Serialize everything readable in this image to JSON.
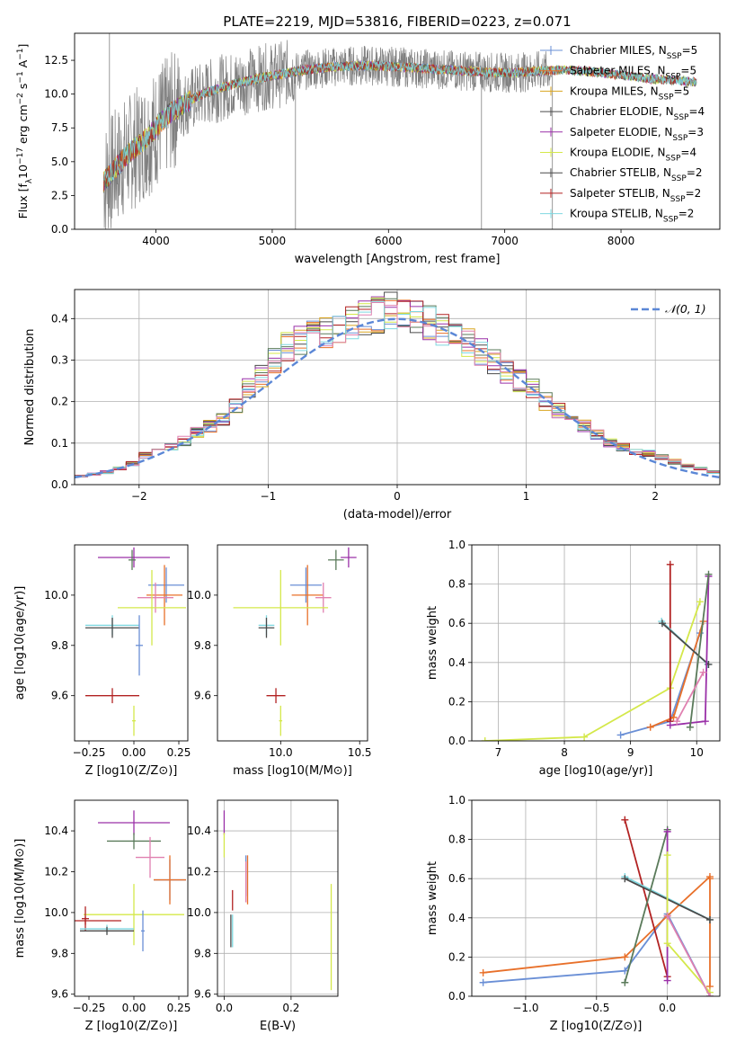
{
  "figure": {
    "title": "PLATE=2219, MJD=53816, FIBERID=0223, z=0.071"
  },
  "colors": {
    "chabrier_miles": "#6a8fd6",
    "salpeter_miles": "#e8702a",
    "kroupa_miles": "#d9a520",
    "chabrier_elodie": "#4a4a4a",
    "salpeter_elodie": "#9a30a8",
    "kroupa_elodie": "#d4e84a",
    "chabrier_stelib": "#5a7a5a",
    "salpeter_stelib": "#b22222",
    "kroupa_stelib": "#7fd8e0",
    "pink": "#e080b0",
    "normal_curve": "#5b87d6"
  },
  "chart_data": [
    {
      "type": "line",
      "panel": "spectrum",
      "title": "PLATE=2219, MJD=53816, FIBERID=0223, z=0.071",
      "xlabel": "wavelength [Angstrom, rest frame]",
      "ylabel": "Flux [f_λ 10^-17 erg cm^-2 s^-1 A^-1]",
      "xlim": [
        3300,
        8850
      ],
      "ylim": [
        0,
        14.5
      ],
      "xticks": [
        "4000",
        "5000",
        "6000",
        "7000",
        "8000"
      ],
      "yticks": [
        "0.0",
        "2.5",
        "5.0",
        "7.5",
        "10.0",
        "12.5"
      ],
      "grid": false,
      "legend_position": "top-right",
      "data_envelope": {
        "x": [
          3550,
          3650,
          3750,
          3850,
          3950,
          4050,
          4150,
          4250,
          4350,
          4500,
          4700,
          4900,
          5100,
          5300,
          5500,
          5700,
          5900,
          6100,
          6300,
          6500,
          6700,
          6900,
          7100,
          7300,
          7500,
          7700,
          7900,
          8100,
          8300,
          8500,
          8650
        ],
        "y": [
          3.5,
          4.5,
          5.5,
          6.2,
          7.0,
          8.0,
          8.8,
          9.3,
          9.8,
          10.3,
          10.8,
          11.2,
          11.5,
          11.8,
          12.0,
          12.1,
          12.1,
          12.0,
          11.9,
          11.8,
          11.7,
          11.6,
          11.6,
          11.7,
          11.8,
          11.7,
          11.5,
          11.3,
          11.1,
          11.0,
          10.9
        ]
      },
      "legend": [
        {
          "label": "Chabrier MILES, N",
          "sub": "SSP",
          "suffix": "=5",
          "color_key": "chabrier_miles"
        },
        {
          "label": "Salpeter MILES, N",
          "sub": "SSP",
          "suffix": "=5",
          "color_key": "salpeter_miles"
        },
        {
          "label": "Kroupa MILES, N",
          "sub": "SSP",
          "suffix": "=5",
          "color_key": "kroupa_miles"
        },
        {
          "label": "Chabrier ELODIE, N",
          "sub": "SSP",
          "suffix": "=4",
          "color_key": "chabrier_elodie"
        },
        {
          "label": "Salpeter ELODIE, N",
          "sub": "SSP",
          "suffix": "=3",
          "color_key": "salpeter_elodie"
        },
        {
          "label": "Kroupa ELODIE, N",
          "sub": "SSP",
          "suffix": "=4",
          "color_key": "kroupa_elodie"
        },
        {
          "label": "Chabrier STELIB, N",
          "sub": "SSP",
          "suffix": "=2",
          "color_key": "chabrier_elodie"
        },
        {
          "label": "Salpeter STELIB, N",
          "sub": "SSP",
          "suffix": "=2",
          "color_key": "salpeter_stelib"
        },
        {
          "label": "Kroupa STELIB, N",
          "sub": "SSP",
          "suffix": "=2",
          "color_key": "kroupa_stelib"
        }
      ]
    },
    {
      "type": "line",
      "panel": "residuals",
      "xlabel": "(data-model)/error",
      "ylabel": "Normed distribution",
      "xlim": [
        -2.5,
        2.5
      ],
      "ylim": [
        0,
        0.47
      ],
      "xticks": [
        "−2",
        "−1",
        "0",
        "1",
        "2"
      ],
      "yticks": [
        "0.0",
        "0.1",
        "0.2",
        "0.3",
        "0.4"
      ],
      "grid": true,
      "legend_position": "top-right",
      "legend": [
        {
          "label": "𝒩(0, 1)",
          "color_key": "normal_curve"
        }
      ],
      "histogram_bin_width": 0.1,
      "histogram_centers": [
        -2.45,
        -2.35,
        -2.25,
        -2.15,
        -2.05,
        -1.95,
        -1.85,
        -1.75,
        -1.65,
        -1.55,
        -1.45,
        -1.35,
        -1.25,
        -1.15,
        -1.05,
        -0.95,
        -0.85,
        -0.75,
        -0.65,
        -0.55,
        -0.45,
        -0.35,
        -0.25,
        -0.15,
        -0.05,
        0.05,
        0.15,
        0.25,
        0.35,
        0.45,
        0.55,
        0.65,
        0.75,
        0.85,
        0.95,
        1.05,
        1.15,
        1.25,
        1.35,
        1.45,
        1.55,
        1.65,
        1.75,
        1.85,
        1.95,
        2.05,
        2.15,
        2.25,
        2.35,
        2.45
      ],
      "histogram_mean": [
        0.02,
        0.025,
        0.03,
        0.04,
        0.05,
        0.07,
        0.08,
        0.09,
        0.105,
        0.125,
        0.14,
        0.16,
        0.19,
        0.23,
        0.26,
        0.3,
        0.33,
        0.35,
        0.36,
        0.37,
        0.38,
        0.39,
        0.4,
        0.41,
        0.42,
        0.41,
        0.4,
        0.39,
        0.37,
        0.36,
        0.34,
        0.32,
        0.3,
        0.27,
        0.25,
        0.23,
        0.2,
        0.18,
        0.16,
        0.14,
        0.12,
        0.1,
        0.09,
        0.08,
        0.075,
        0.065,
        0.055,
        0.045,
        0.04,
        0.03
      ],
      "normal_curve": {
        "mu": 0,
        "sigma": 1
      }
    },
    {
      "type": "scatter",
      "panel": "age_vs_Z",
      "xlabel": "Z [log10(Z/Z⊙)]",
      "ylabel": "age [log10(age/yr)]",
      "xlim": [
        -0.33,
        0.3
      ],
      "ylim": [
        9.42,
        10.2
      ],
      "xticks": [
        "−0.25",
        "0.00",
        "0.25"
      ],
      "yticks": [
        "9.6",
        "9.8",
        "10.0"
      ],
      "grid": false,
      "points": [
        {
          "x": 0.0,
          "y": 10.15,
          "xerr": 0.2,
          "yerr": 0.04,
          "color_key": "salpeter_elodie"
        },
        {
          "x": -0.01,
          "y": 10.14,
          "xerr": 0.02,
          "yerr": 0.04,
          "color_key": "chabrier_stelib"
        },
        {
          "x": 0.18,
          "y": 10.04,
          "xerr": 0.1,
          "yerr": 0.07,
          "color_key": "chabrier_miles"
        },
        {
          "x": 0.17,
          "y": 10.0,
          "xerr": 0.1,
          "yerr": 0.12,
          "color_key": "salpeter_miles"
        },
        {
          "x": 0.12,
          "y": 9.99,
          "xerr": 0.1,
          "yerr": 0.06,
          "color_key": "pink"
        },
        {
          "x": 0.1,
          "y": 9.95,
          "xerr": 0.19,
          "yerr": 0.15,
          "color_key": "kroupa_elodie"
        },
        {
          "x": -0.12,
          "y": 9.88,
          "xerr": 0.15,
          "yerr": 0.04,
          "color_key": "kroupa_stelib"
        },
        {
          "x": -0.12,
          "y": 9.87,
          "xerr": 0.15,
          "yerr": 0.04,
          "color_key": "chabrier_elodie"
        },
        {
          "x": 0.03,
          "y": 9.8,
          "xerr": 0.02,
          "yerr": 0.12,
          "color_key": "chabrier_miles"
        },
        {
          "x": -0.12,
          "y": 9.6,
          "xerr": 0.15,
          "yerr": 0.03,
          "color_key": "salpeter_stelib"
        },
        {
          "x": 0.0,
          "y": 9.5,
          "xerr": 0.01,
          "yerr": 0.06,
          "color_key": "kroupa_elodie"
        }
      ]
    },
    {
      "type": "scatter",
      "panel": "age_vs_mass",
      "xlabel": "mass [log10(M/M⊙)]",
      "xlim": [
        9.6,
        10.55
      ],
      "ylim": [
        9.42,
        10.2
      ],
      "xticks": [
        "9.5",
        "10.0",
        "10.5"
      ],
      "yticks": [
        "9.6",
        "9.8",
        "10.0"
      ],
      "grid": false,
      "points": [
        {
          "x": 10.43,
          "y": 10.15,
          "xerr": 0.05,
          "yerr": 0.04,
          "color_key": "salpeter_elodie"
        },
        {
          "x": 10.35,
          "y": 10.14,
          "xerr": 0.05,
          "yerr": 0.04,
          "color_key": "chabrier_stelib"
        },
        {
          "x": 10.16,
          "y": 10.04,
          "xerr": 0.1,
          "yerr": 0.07,
          "color_key": "chabrier_miles"
        },
        {
          "x": 10.17,
          "y": 10.0,
          "xerr": 0.1,
          "yerr": 0.12,
          "color_key": "salpeter_miles"
        },
        {
          "x": 10.27,
          "y": 9.99,
          "xerr": 0.05,
          "yerr": 0.06,
          "color_key": "pink"
        },
        {
          "x": 10.0,
          "y": 9.95,
          "xerr": 0.3,
          "yerr": 0.15,
          "color_key": "kroupa_elodie"
        },
        {
          "x": 9.91,
          "y": 9.88,
          "xerr": 0.05,
          "yerr": 0.04,
          "color_key": "kroupa_stelib"
        },
        {
          "x": 9.91,
          "y": 9.87,
          "xerr": 0.05,
          "yerr": 0.04,
          "color_key": "chabrier_elodie"
        },
        {
          "x": 9.97,
          "y": 9.6,
          "xerr": 0.06,
          "yerr": 0.03,
          "color_key": "salpeter_stelib"
        },
        {
          "x": 10.0,
          "y": 9.5,
          "xerr": 0.01,
          "yerr": 0.06,
          "color_key": "kroupa_elodie"
        }
      ]
    },
    {
      "type": "line",
      "panel": "weight_vs_age",
      "xlabel": "age [log10(age/yr)]",
      "ylabel": "mass weight",
      "xlim": [
        6.6,
        10.35
      ],
      "ylim": [
        0,
        1.0
      ],
      "xticks": [
        "7",
        "8",
        "9",
        "10"
      ],
      "yticks": [
        "0.0",
        "0.2",
        "0.4",
        "0.6",
        "0.8",
        "1.0"
      ],
      "grid": true,
      "series": [
        {
          "color_key": "kroupa_elodie",
          "x": [
            6.8,
            8.3,
            9.6,
            10.05
          ],
          "y": [
            0.0,
            0.02,
            0.27,
            0.71
          ]
        },
        {
          "color_key": "chabrier_miles",
          "x": [
            8.85,
            9.6,
            10.05
          ],
          "y": [
            0.03,
            0.1,
            0.55
          ]
        },
        {
          "color_key": "salpeter_miles",
          "x": [
            9.3,
            9.65,
            10.1
          ],
          "y": [
            0.07,
            0.12,
            0.61
          ]
        },
        {
          "color_key": "salpeter_stelib",
          "x": [
            9.6,
            9.6
          ],
          "y": [
            0.9,
            0.1
          ]
        },
        {
          "color_key": "kroupa_stelib",
          "x": [
            9.47,
            10.17
          ],
          "y": [
            0.61,
            0.39
          ]
        },
        {
          "color_key": "chabrier_elodie",
          "x": [
            9.48,
            10.18
          ],
          "y": [
            0.6,
            0.39
          ]
        },
        {
          "color_key": "salpeter_elodie",
          "x": [
            9.6,
            10.13,
            10.18
          ],
          "y": [
            0.08,
            0.1,
            0.84
          ]
        },
        {
          "color_key": "chabrier_stelib",
          "x": [
            9.9,
            10.18
          ],
          "y": [
            0.07,
            0.85
          ]
        },
        {
          "color_key": "pink",
          "x": [
            9.7,
            10.1
          ],
          "y": [
            0.1,
            0.35
          ]
        }
      ]
    },
    {
      "type": "scatter",
      "panel": "mass_vs_Z",
      "xlabel": "Z [log10(Z/Z⊙)]",
      "ylabel": "mass [log10(M/M⊙)]",
      "xlim": [
        -0.33,
        0.3
      ],
      "ylim": [
        9.59,
        10.55
      ],
      "xticks": [
        "−0.25",
        "0.00",
        "0.25"
      ],
      "yticks": [
        "9.6",
        "9.8",
        "10.0",
        "10.2",
        "10.4"
      ],
      "grid": false,
      "points": [
        {
          "x": 0.0,
          "y": 10.44,
          "xerr": 0.2,
          "yerr": 0.06,
          "color_key": "salpeter_elodie"
        },
        {
          "x": 0.0,
          "y": 10.35,
          "xerr": 0.15,
          "yerr": 0.04,
          "color_key": "chabrier_stelib"
        },
        {
          "x": 0.09,
          "y": 10.27,
          "xerr": 0.08,
          "yerr": 0.1,
          "color_key": "pink"
        },
        {
          "x": 0.2,
          "y": 10.16,
          "xerr": 0.09,
          "yerr": 0.1,
          "color_key": "chabrier_miles"
        },
        {
          "x": 0.2,
          "y": 10.16,
          "xerr": 0.09,
          "yerr": 0.12,
          "color_key": "salpeter_miles"
        },
        {
          "x": 0.0,
          "y": 9.99,
          "xerr": 0.28,
          "yerr": 0.15,
          "color_key": "kroupa_elodie"
        },
        {
          "x": -0.27,
          "y": 9.97,
          "xerr": 0.02,
          "yerr": 0.06,
          "color_key": "salpeter_stelib"
        },
        {
          "x": -0.27,
          "y": 9.96,
          "xerr": 0.2,
          "yerr": 0.02,
          "color_key": "salpeter_stelib"
        },
        {
          "x": -0.15,
          "y": 9.92,
          "xerr": 0.15,
          "yerr": 0.02,
          "color_key": "kroupa_stelib"
        },
        {
          "x": -0.15,
          "y": 9.91,
          "xerr": 0.15,
          "yerr": 0.02,
          "color_key": "chabrier_elodie"
        },
        {
          "x": 0.05,
          "y": 9.91,
          "xerr": 0.01,
          "yerr": 0.1,
          "color_key": "chabrier_miles"
        }
      ]
    },
    {
      "type": "scatter",
      "panel": "mass_vs_ebv",
      "xlabel": "E(B-V)",
      "xlim": [
        -0.02,
        0.34
      ],
      "ylim": [
        9.59,
        10.55
      ],
      "xticks": [
        "0.0",
        "0.2"
      ],
      "yticks": [
        "9.6",
        "9.8",
        "10.0",
        "10.2",
        "10.4"
      ],
      "grid": true,
      "points": [
        {
          "x": 0.0,
          "y": 10.44,
          "yerr": 0.06,
          "color_key": "salpeter_elodie"
        },
        {
          "x": 0.0,
          "y": 10.33,
          "yerr": 0.06,
          "color_key": "kroupa_elodie"
        },
        {
          "x": 0.065,
          "y": 10.18,
          "yerr": 0.1,
          "color_key": "chabrier_miles"
        },
        {
          "x": 0.07,
          "y": 10.16,
          "yerr": 0.12,
          "color_key": "salpeter_miles"
        },
        {
          "x": 0.065,
          "y": 10.15,
          "yerr": 0.1,
          "color_key": "pink"
        },
        {
          "x": 0.025,
          "y": 10.06,
          "yerr": 0.05,
          "color_key": "salpeter_stelib"
        },
        {
          "x": 0.02,
          "y": 9.91,
          "yerr": 0.08,
          "color_key": "chabrier_elodie"
        },
        {
          "x": 0.025,
          "y": 9.91,
          "yerr": 0.08,
          "color_key": "kroupa_stelib"
        },
        {
          "x": 0.32,
          "y": 9.88,
          "yerr": 0.26,
          "color_key": "kroupa_elodie"
        }
      ]
    },
    {
      "type": "line",
      "panel": "weight_vs_Z",
      "xlabel": "Z [log10(Z/Z⊙)]",
      "ylabel": "mass weight",
      "xlim": [
        -1.38,
        0.37
      ],
      "ylim": [
        0,
        1.0
      ],
      "xticks": [
        "−1.0",
        "−0.5",
        "0.0"
      ],
      "yticks": [
        "0.0",
        "0.2",
        "0.4",
        "0.6",
        "0.8",
        "1.0"
      ],
      "grid": true,
      "series": [
        {
          "color_key": "chabrier_miles",
          "x": [
            -1.3,
            -0.3,
            0.0,
            0.3
          ],
          "y": [
            0.07,
            0.13,
            0.42,
            0.0
          ]
        },
        {
          "color_key": "salpeter_miles",
          "x": [
            -1.3,
            -0.3,
            0.0,
            0.3
          ],
          "y": [
            0.12,
            0.2,
            0.41,
            0.61
          ]
        },
        {
          "color_key": "salpeter_miles",
          "x": [
            0.3,
            0.3
          ],
          "y": [
            0.6,
            0.05
          ]
        },
        {
          "color_key": "salpeter_stelib",
          "x": [
            -0.3,
            0.0
          ],
          "y": [
            0.9,
            0.1
          ]
        },
        {
          "color_key": "kroupa_stelib",
          "x": [
            -0.3,
            0.3
          ],
          "y": [
            0.61,
            0.39
          ]
        },
        {
          "color_key": "chabrier_elodie",
          "x": [
            -0.3,
            0.3
          ],
          "y": [
            0.6,
            0.39
          ]
        },
        {
          "color_key": "chabrier_stelib",
          "x": [
            -0.3,
            0.0
          ],
          "y": [
            0.07,
            0.85
          ]
        },
        {
          "color_key": "salpeter_elodie",
          "x": [
            0.0,
            0.0
          ],
          "y": [
            0.84,
            0.08
          ]
        },
        {
          "color_key": "kroupa_elodie",
          "x": [
            0.0,
            0.0,
            0.3
          ],
          "y": [
            0.72,
            0.27,
            0.02
          ]
        },
        {
          "color_key": "pink",
          "x": [
            0.0,
            0.3
          ],
          "y": [
            0.41,
            0.0
          ]
        }
      ]
    }
  ]
}
